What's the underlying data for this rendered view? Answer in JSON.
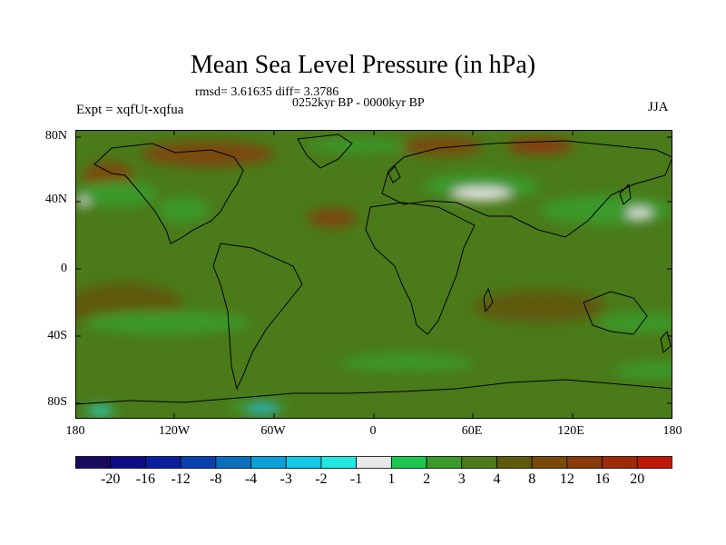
{
  "title": "Mean Sea Level Pressure (in hPa)",
  "stats": "rmsd= 3.61635 diff= 3.3786",
  "period": "0252kyr BP - 0000kyr BP",
  "experiment": "Expt = xqfUt-xqfua",
  "season": "JJA",
  "lat_labels": [
    "80N",
    "40N",
    "0",
    "40S",
    "80S"
  ],
  "lon_labels": [
    "180",
    "120W",
    "60W",
    "0",
    "60E",
    "120E",
    "180"
  ],
  "colorbar": {
    "labels": [
      "-20",
      "-16",
      "-12",
      "-8",
      "-4",
      "-3",
      "-2",
      "-1",
      "1",
      "2",
      "3",
      "4",
      "8",
      "12",
      "16",
      "20"
    ],
    "colors": [
      "#1a0a5e",
      "#0c0c8a",
      "#0a1fa0",
      "#0a3fb0",
      "#0a6fc0",
      "#0aa0d8",
      "#10c8e8",
      "#20e8e0",
      "#e8e8e8",
      "#1ec850",
      "#3a9a2a",
      "#4a7a1a",
      "#5f5a0a",
      "#7a4a08",
      "#8a3a08",
      "#a02a08",
      "#c01808"
    ]
  },
  "map_data": {
    "type": "filled-contour-map",
    "projection": "cylindrical-equidistant",
    "field": "mean sea level pressure difference",
    "units": "hPa",
    "lon_range": [
      -180,
      180
    ],
    "lat_range": [
      -90,
      90
    ],
    "dominant_range": "3 to 8",
    "patches": [
      {
        "lon": -100,
        "lat": 75,
        "rlon": 40,
        "rlat": 8,
        "level": "8 to 12"
      },
      {
        "lon": 40,
        "lat": 80,
        "rlon": 25,
        "rlat": 6,
        "level": "8 to 12"
      },
      {
        "lon": 100,
        "lat": 80,
        "rlon": 20,
        "rlat": 5,
        "level": "12 to 16"
      },
      {
        "lon": -160,
        "lat": 60,
        "rlon": 15,
        "rlat": 10,
        "level": "8 to 12"
      },
      {
        "lon": -25,
        "lat": 35,
        "rlon": 15,
        "rlat": 6,
        "level": "8 to 12"
      },
      {
        "lon": -150,
        "lat": -20,
        "rlon": 35,
        "rlat": 15,
        "level": "4 to 8"
      },
      {
        "lon": 100,
        "lat": -20,
        "rlon": 40,
        "rlat": 10,
        "level": "4 to 8"
      },
      {
        "lon": -155,
        "lat": 50,
        "rlon": 25,
        "rlat": 8,
        "level": "2 to 3"
      },
      {
        "lon": -115,
        "lat": 40,
        "rlon": 15,
        "rlat": 8,
        "level": "2 to 3"
      },
      {
        "lon": -10,
        "lat": 80,
        "rlon": 30,
        "rlat": 4,
        "level": "2 to 3"
      },
      {
        "lon": 65,
        "lat": 55,
        "rlon": 35,
        "rlat": 8,
        "level": "2 to 3"
      },
      {
        "lon": 140,
        "lat": 40,
        "rlon": 40,
        "rlat": 9,
        "level": "2 to 3"
      },
      {
        "lon": -125,
        "lat": -30,
        "rlon": 50,
        "rlat": 7,
        "level": "2 to 3"
      },
      {
        "lon": 160,
        "lat": -30,
        "rlon": 25,
        "rlat": 6,
        "level": "2 to 3"
      },
      {
        "lon": 20,
        "lat": -55,
        "rlon": 40,
        "rlat": 5,
        "level": "2 to 3"
      },
      {
        "lon": 170,
        "lat": -60,
        "rlon": 25,
        "rlat": 5,
        "level": "2 to 3"
      },
      {
        "lon": -165,
        "lat": -85,
        "rlon": 12,
        "rlat": 3,
        "level": "2 to 3"
      },
      {
        "lon": -70,
        "lat": -83,
        "rlon": 18,
        "rlat": 4,
        "level": "2 to 3"
      },
      {
        "lon": 65,
        "lat": 50,
        "rlon": 18,
        "rlat": 4,
        "level": "-1 to 1"
      },
      {
        "lon": 160,
        "lat": 38,
        "rlon": 8,
        "rlat": 3,
        "level": "-1 to 1"
      },
      {
        "lon": -175,
        "lat": 45,
        "rlon": 3,
        "rlat": 3,
        "level": "-1 to 1"
      },
      {
        "lon": -165,
        "lat": -85,
        "rlon": 6,
        "rlat": 2,
        "level": "-2 to -1"
      },
      {
        "lon": -67,
        "lat": -84,
        "rlon": 9,
        "rlat": 2,
        "level": "-3 to -2"
      }
    ]
  }
}
